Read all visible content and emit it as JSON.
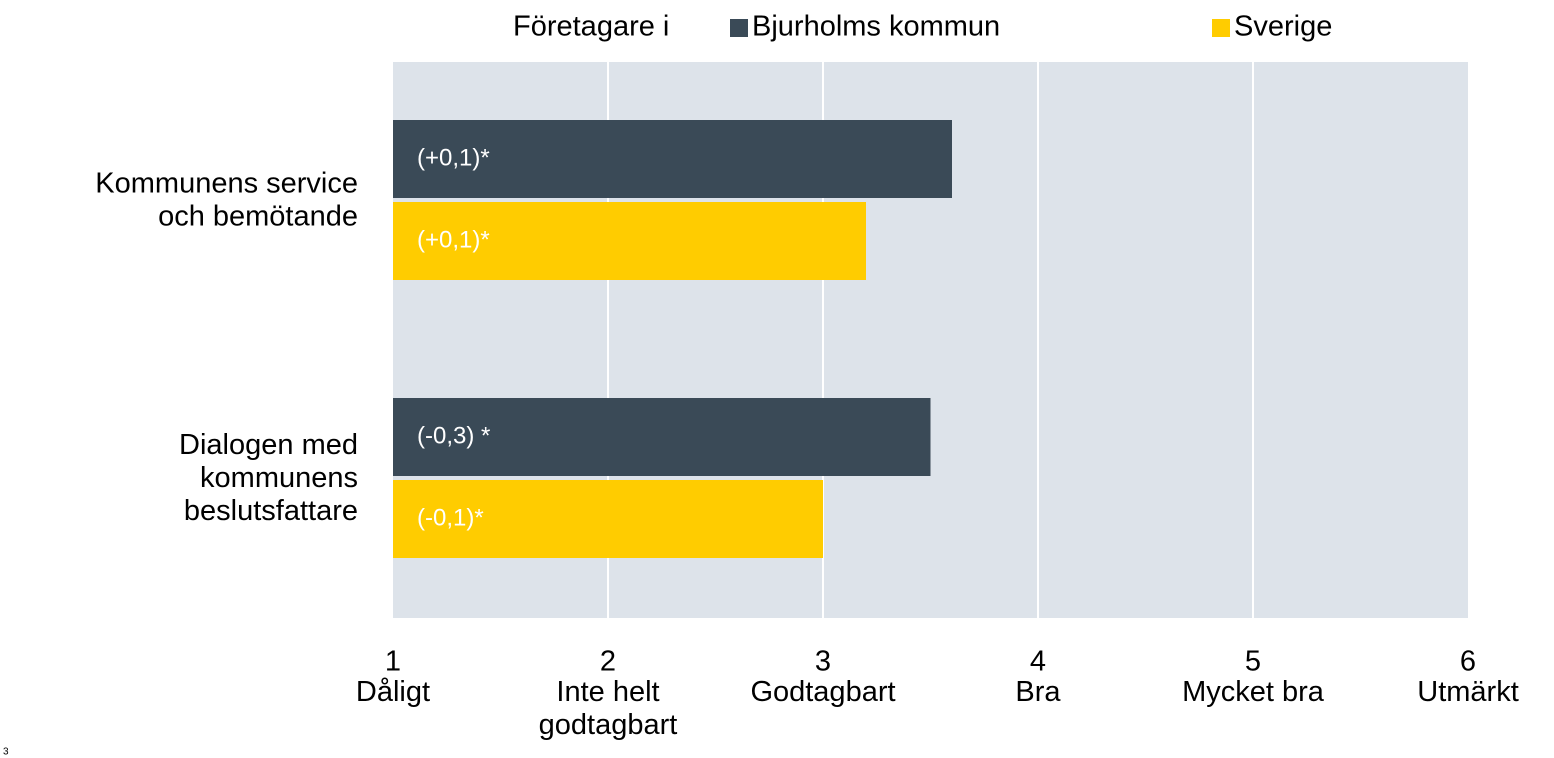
{
  "chart_data": {
    "type": "hbar",
    "legend_title": "Företagare i",
    "categories": [
      "Kommunens service och bemötande",
      "Dialogen med kommunens beslutsfattare"
    ],
    "series": [
      {
        "name": "Bjurholms kommun",
        "color": "#3a4a57",
        "values": [
          3.6,
          3.5
        ],
        "bar_labels": [
          "(+0,1)*",
          "(-0,3) *"
        ]
      },
      {
        "name": "Sverige",
        "color": "#ffcc00",
        "values": [
          3.2,
          3.0
        ],
        "bar_labels": [
          "(+0,1)*",
          "(-0,1)*"
        ]
      }
    ],
    "xlim": [
      1,
      6
    ],
    "xticks": [
      1,
      2,
      3,
      4,
      5,
      6
    ],
    "xtick_names": [
      "Dåligt",
      "Inte helt godtagbart",
      "Godtagbart",
      "Bra",
      "Mycket bra",
      "Utmärkt"
    ],
    "grid": true,
    "legend": "top",
    "page_number": "3"
  }
}
